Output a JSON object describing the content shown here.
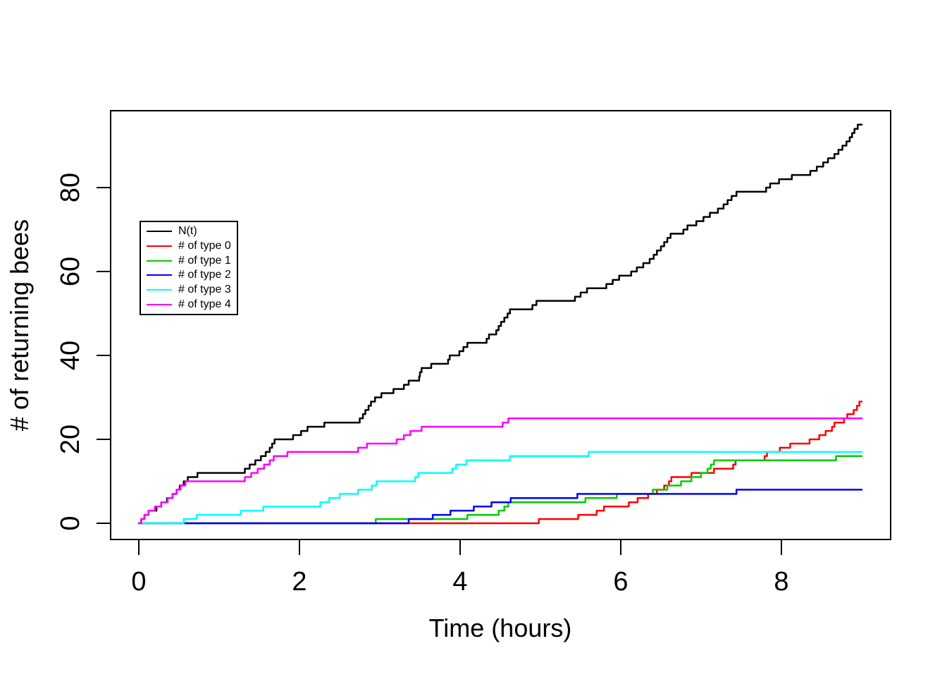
{
  "figure": {
    "background": "#FFFFFF",
    "title": ""
  },
  "axes": {
    "xlabel": "Time (hours)",
    "ylabel": "# of returning bees",
    "xtick_labels": [
      "0",
      "2",
      "4",
      "6",
      "8"
    ],
    "ytick_labels": [
      "0",
      "20",
      "40",
      "60",
      "80"
    ]
  },
  "legend": {
    "items": [
      {
        "label": "N(t)",
        "color": "#000000"
      },
      {
        "label": "# of type 0",
        "color": "#FF0000"
      },
      {
        "label": "# of type 1",
        "color": "#00CD00"
      },
      {
        "label": "# of type 2",
        "color": "#0000FF"
      },
      {
        "label": "# of type 3",
        "color": "#00FFFF"
      },
      {
        "label": "# of type 4",
        "color": "#FF00FF"
      }
    ]
  },
  "chart_data": {
    "type": "line",
    "subtype": "step-after",
    "title": "",
    "xlabel": "Time (hours)",
    "ylabel": "# of returning bees",
    "xlim": [
      -0.36,
      9.36
    ],
    "ylim": [
      -3.9,
      98.3
    ],
    "xticks": [
      0,
      2,
      4,
      6,
      8
    ],
    "yticks": [
      0,
      20,
      40,
      60,
      80
    ],
    "grid": false,
    "legend_position": "upper-left-inside",
    "series": [
      {
        "name": "N(t)",
        "color": "#000000",
        "points": [
          [
            0,
            0
          ],
          [
            0.03,
            1
          ],
          [
            0.07,
            2
          ],
          [
            0.12,
            3
          ],
          [
            0.22,
            4
          ],
          [
            0.28,
            5
          ],
          [
            0.35,
            6
          ],
          [
            0.42,
            7
          ],
          [
            0.47,
            8
          ],
          [
            0.51,
            9
          ],
          [
            0.56,
            10
          ],
          [
            0.61,
            11
          ],
          [
            0.73,
            12
          ],
          [
            1.32,
            13
          ],
          [
            1.38,
            14
          ],
          [
            1.45,
            15
          ],
          [
            1.52,
            16
          ],
          [
            1.58,
            17
          ],
          [
            1.63,
            18
          ],
          [
            1.66,
            19
          ],
          [
            1.69,
            20
          ],
          [
            1.92,
            21
          ],
          [
            2.02,
            22
          ],
          [
            2.1,
            23
          ],
          [
            2.31,
            24
          ],
          [
            2.75,
            25
          ],
          [
            2.79,
            26
          ],
          [
            2.82,
            27
          ],
          [
            2.86,
            28
          ],
          [
            2.89,
            29
          ],
          [
            2.94,
            30
          ],
          [
            3.02,
            31
          ],
          [
            3.17,
            32
          ],
          [
            3.3,
            33
          ],
          [
            3.36,
            34
          ],
          [
            3.49,
            35
          ],
          [
            3.5,
            36
          ],
          [
            3.52,
            37
          ],
          [
            3.64,
            38
          ],
          [
            3.85,
            39
          ],
          [
            3.87,
            40
          ],
          [
            3.99,
            41
          ],
          [
            4.04,
            42
          ],
          [
            4.09,
            43
          ],
          [
            4.33,
            44
          ],
          [
            4.36,
            45
          ],
          [
            4.45,
            46
          ],
          [
            4.48,
            47
          ],
          [
            4.51,
            48
          ],
          [
            4.55,
            49
          ],
          [
            4.59,
            50
          ],
          [
            4.62,
            51
          ],
          [
            4.9,
            52
          ],
          [
            4.95,
            53
          ],
          [
            5.43,
            54
          ],
          [
            5.5,
            55
          ],
          [
            5.58,
            56
          ],
          [
            5.82,
            57
          ],
          [
            5.9,
            58
          ],
          [
            5.98,
            59
          ],
          [
            6.13,
            60
          ],
          [
            6.2,
            61
          ],
          [
            6.28,
            62
          ],
          [
            6.36,
            63
          ],
          [
            6.41,
            64
          ],
          [
            6.45,
            65
          ],
          [
            6.5,
            66
          ],
          [
            6.54,
            67
          ],
          [
            6.58,
            68
          ],
          [
            6.62,
            69
          ],
          [
            6.78,
            70
          ],
          [
            6.83,
            71
          ],
          [
            6.94,
            72
          ],
          [
            7.03,
            73
          ],
          [
            7.11,
            74
          ],
          [
            7.21,
            75
          ],
          [
            7.28,
            76
          ],
          [
            7.33,
            77
          ],
          [
            7.38,
            78
          ],
          [
            7.44,
            79
          ],
          [
            7.81,
            80
          ],
          [
            7.86,
            81
          ],
          [
            7.97,
            82
          ],
          [
            8.13,
            83
          ],
          [
            8.36,
            84
          ],
          [
            8.44,
            85
          ],
          [
            8.52,
            86
          ],
          [
            8.58,
            87
          ],
          [
            8.66,
            88
          ],
          [
            8.71,
            89
          ],
          [
            8.76,
            90
          ],
          [
            8.81,
            91
          ],
          [
            8.85,
            92
          ],
          [
            8.88,
            93
          ],
          [
            8.91,
            94
          ],
          [
            8.95,
            95
          ],
          [
            9.0,
            95
          ]
        ]
      },
      {
        "name": "# of type 0",
        "color": "#FF0000",
        "points": [
          [
            0,
            0
          ],
          [
            4.98,
            1
          ],
          [
            5.47,
            2
          ],
          [
            5.7,
            3
          ],
          [
            5.79,
            4
          ],
          [
            6.1,
            5
          ],
          [
            6.21,
            6
          ],
          [
            6.34,
            7
          ],
          [
            6.45,
            8
          ],
          [
            6.54,
            9
          ],
          [
            6.6,
            10
          ],
          [
            6.63,
            11
          ],
          [
            6.88,
            12
          ],
          [
            7.16,
            13
          ],
          [
            7.4,
            14
          ],
          [
            7.43,
            15
          ],
          [
            7.79,
            16
          ],
          [
            7.82,
            17
          ],
          [
            7.98,
            18
          ],
          [
            8.11,
            19
          ],
          [
            8.35,
            20
          ],
          [
            8.47,
            21
          ],
          [
            8.55,
            22
          ],
          [
            8.63,
            23
          ],
          [
            8.66,
            24
          ],
          [
            8.78,
            25
          ],
          [
            8.82,
            26
          ],
          [
            8.9,
            27
          ],
          [
            8.94,
            28
          ],
          [
            8.97,
            29
          ],
          [
            9.0,
            29
          ]
        ]
      },
      {
        "name": "# of type 1",
        "color": "#00CD00",
        "points": [
          [
            0,
            0
          ],
          [
            2.95,
            1
          ],
          [
            4.09,
            2
          ],
          [
            4.48,
            3
          ],
          [
            4.55,
            4
          ],
          [
            4.6,
            5
          ],
          [
            5.56,
            6
          ],
          [
            5.95,
            7
          ],
          [
            6.4,
            8
          ],
          [
            6.58,
            9
          ],
          [
            6.75,
            10
          ],
          [
            6.88,
            11
          ],
          [
            7.0,
            12
          ],
          [
            7.08,
            13
          ],
          [
            7.12,
            14
          ],
          [
            7.16,
            15
          ],
          [
            8.68,
            16
          ],
          [
            9.0,
            16
          ]
        ]
      },
      {
        "name": "# of type 2",
        "color": "#0000FF",
        "points": [
          [
            0,
            0
          ],
          [
            3.36,
            1
          ],
          [
            3.66,
            2
          ],
          [
            3.88,
            3
          ],
          [
            4.17,
            4
          ],
          [
            4.39,
            5
          ],
          [
            4.63,
            6
          ],
          [
            5.46,
            7
          ],
          [
            7.44,
            8
          ],
          [
            9.0,
            8
          ]
        ]
      },
      {
        "name": "# of type 3",
        "color": "#00FFFF",
        "points": [
          [
            0,
            0
          ],
          [
            0.56,
            1
          ],
          [
            0.72,
            2
          ],
          [
            1.27,
            3
          ],
          [
            1.55,
            4
          ],
          [
            2.26,
            5
          ],
          [
            2.37,
            6
          ],
          [
            2.5,
            7
          ],
          [
            2.73,
            8
          ],
          [
            2.9,
            9
          ],
          [
            2.96,
            10
          ],
          [
            3.44,
            11
          ],
          [
            3.48,
            12
          ],
          [
            3.9,
            13
          ],
          [
            3.95,
            14
          ],
          [
            4.08,
            15
          ],
          [
            4.62,
            16
          ],
          [
            5.6,
            17
          ],
          [
            9.0,
            17
          ]
        ]
      },
      {
        "name": "# of type 4",
        "color": "#FF00FF",
        "points": [
          [
            0,
            0
          ],
          [
            0.03,
            1
          ],
          [
            0.07,
            2
          ],
          [
            0.12,
            3
          ],
          [
            0.2,
            4
          ],
          [
            0.28,
            5
          ],
          [
            0.36,
            6
          ],
          [
            0.42,
            7
          ],
          [
            0.47,
            8
          ],
          [
            0.52,
            9
          ],
          [
            0.58,
            10
          ],
          [
            1.32,
            11
          ],
          [
            1.4,
            12
          ],
          [
            1.48,
            13
          ],
          [
            1.56,
            14
          ],
          [
            1.63,
            15
          ],
          [
            1.68,
            16
          ],
          [
            1.85,
            17
          ],
          [
            2.73,
            18
          ],
          [
            2.84,
            19
          ],
          [
            3.21,
            20
          ],
          [
            3.3,
            21
          ],
          [
            3.38,
            22
          ],
          [
            3.52,
            23
          ],
          [
            4.53,
            24
          ],
          [
            4.6,
            25
          ],
          [
            9.0,
            25
          ]
        ]
      }
    ]
  }
}
